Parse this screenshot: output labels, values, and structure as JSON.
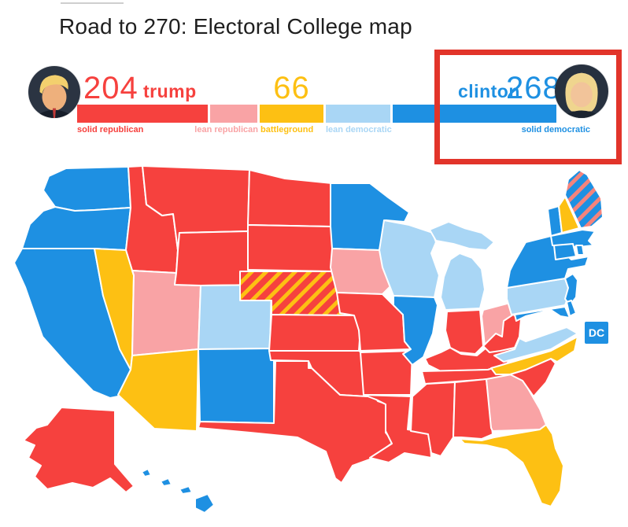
{
  "page": {
    "title": "Road to 270: Electoral College map"
  },
  "legend": {
    "trump": {
      "name": "trump",
      "votes": "204"
    },
    "clinton": {
      "name": "clinton",
      "votes": "268"
    },
    "battleground_votes": "66",
    "segments": [
      {
        "id": "solid-republican",
        "label": "solid republican",
        "color": "#F6413E"
      },
      {
        "id": "lean-republican",
        "label": "lean republican",
        "color": "#F9A3A5"
      },
      {
        "id": "battleground",
        "label": "battleground",
        "color": "#FDC013"
      },
      {
        "id": "lean-democratic",
        "label": "lean democratic",
        "color": "#A9D6F5"
      },
      {
        "id": "solid-democratic",
        "label": "solid democratic",
        "color": "#1E90E2"
      }
    ]
  },
  "annotation": {
    "color": "#E2342A"
  },
  "map": {
    "dc_label": "DC",
    "category_colors": {
      "solid-republican": "#F6413E",
      "lean-republican": "#F9A3A5",
      "battleground": "#FDC013",
      "lean-democratic": "#A9D6F5",
      "solid-democratic": "#1E90E2"
    },
    "patterns": {
      "nebraska": {
        "base": "#F6413E",
        "stripe": "#FDC013"
      },
      "maine": {
        "base": "#1E90E2",
        "stripe": "#F5837C"
      }
    },
    "states": [
      {
        "id": "WA",
        "name": "Washington",
        "category": "solid-democratic"
      },
      {
        "id": "OR",
        "name": "Oregon",
        "category": "solid-democratic"
      },
      {
        "id": "CA",
        "name": "California",
        "category": "solid-democratic"
      },
      {
        "id": "ID",
        "name": "Idaho",
        "category": "solid-republican"
      },
      {
        "id": "NV",
        "name": "Nevada",
        "category": "battleground"
      },
      {
        "id": "UT",
        "name": "Utah",
        "category": "lean-republican"
      },
      {
        "id": "AZ",
        "name": "Arizona",
        "category": "battleground"
      },
      {
        "id": "MT",
        "name": "Montana",
        "category": "solid-republican"
      },
      {
        "id": "WY",
        "name": "Wyoming",
        "category": "solid-republican"
      },
      {
        "id": "CO",
        "name": "Colorado",
        "category": "lean-democratic"
      },
      {
        "id": "NM",
        "name": "New Mexico",
        "category": "solid-democratic"
      },
      {
        "id": "ND",
        "name": "North Dakota",
        "category": "solid-republican"
      },
      {
        "id": "SD",
        "name": "South Dakota",
        "category": "solid-republican"
      },
      {
        "id": "NE",
        "name": "Nebraska",
        "category": "split-solid-republican-battleground"
      },
      {
        "id": "KS",
        "name": "Kansas",
        "category": "solid-republican"
      },
      {
        "id": "OK",
        "name": "Oklahoma",
        "category": "solid-republican"
      },
      {
        "id": "TX",
        "name": "Texas",
        "category": "solid-republican"
      },
      {
        "id": "MN",
        "name": "Minnesota",
        "category": "solid-democratic"
      },
      {
        "id": "IA",
        "name": "Iowa",
        "category": "lean-republican"
      },
      {
        "id": "MO",
        "name": "Missouri",
        "category": "solid-republican"
      },
      {
        "id": "AR",
        "name": "Arkansas",
        "category": "solid-republican"
      },
      {
        "id": "LA",
        "name": "Louisiana",
        "category": "solid-republican"
      },
      {
        "id": "WI",
        "name": "Wisconsin",
        "category": "lean-democratic"
      },
      {
        "id": "IL",
        "name": "Illinois",
        "category": "solid-democratic"
      },
      {
        "id": "MI",
        "name": "Michigan",
        "category": "lean-democratic"
      },
      {
        "id": "IN",
        "name": "Indiana",
        "category": "solid-republican"
      },
      {
        "id": "OH",
        "name": "Ohio",
        "category": "lean-republican"
      },
      {
        "id": "KY",
        "name": "Kentucky",
        "category": "solid-republican"
      },
      {
        "id": "TN",
        "name": "Tennessee",
        "category": "solid-republican"
      },
      {
        "id": "MS",
        "name": "Mississippi",
        "category": "solid-republican"
      },
      {
        "id": "AL",
        "name": "Alabama",
        "category": "solid-republican"
      },
      {
        "id": "GA",
        "name": "Georgia",
        "category": "lean-republican"
      },
      {
        "id": "FL",
        "name": "Florida",
        "category": "battleground"
      },
      {
        "id": "SC",
        "name": "South Carolina",
        "category": "solid-republican"
      },
      {
        "id": "NC",
        "name": "North Carolina",
        "category": "battleground"
      },
      {
        "id": "VA",
        "name": "Virginia",
        "category": "lean-democratic"
      },
      {
        "id": "WV",
        "name": "West Virginia",
        "category": "solid-republican"
      },
      {
        "id": "PA",
        "name": "Pennsylvania",
        "category": "lean-democratic"
      },
      {
        "id": "NY",
        "name": "New York",
        "category": "solid-democratic"
      },
      {
        "id": "NJ",
        "name": "New Jersey",
        "category": "solid-democratic"
      },
      {
        "id": "MD",
        "name": "Maryland",
        "category": "solid-democratic"
      },
      {
        "id": "DE",
        "name": "Delaware",
        "category": "solid-democratic"
      },
      {
        "id": "VT",
        "name": "Vermont",
        "category": "solid-democratic"
      },
      {
        "id": "NH",
        "name": "New Hampshire",
        "category": "battleground"
      },
      {
        "id": "ME",
        "name": "Maine",
        "category": "split-solid-democratic-lean-republican"
      },
      {
        "id": "MA",
        "name": "Massachusetts",
        "category": "solid-democratic"
      },
      {
        "id": "CT",
        "name": "Connecticut",
        "category": "solid-democratic"
      },
      {
        "id": "RI",
        "name": "Rhode Island",
        "category": "solid-democratic"
      },
      {
        "id": "AK",
        "name": "Alaska",
        "category": "solid-republican"
      },
      {
        "id": "HI",
        "name": "Hawaii",
        "category": "solid-democratic"
      },
      {
        "id": "DC",
        "name": "District of Columbia",
        "category": "solid-democratic"
      }
    ]
  }
}
